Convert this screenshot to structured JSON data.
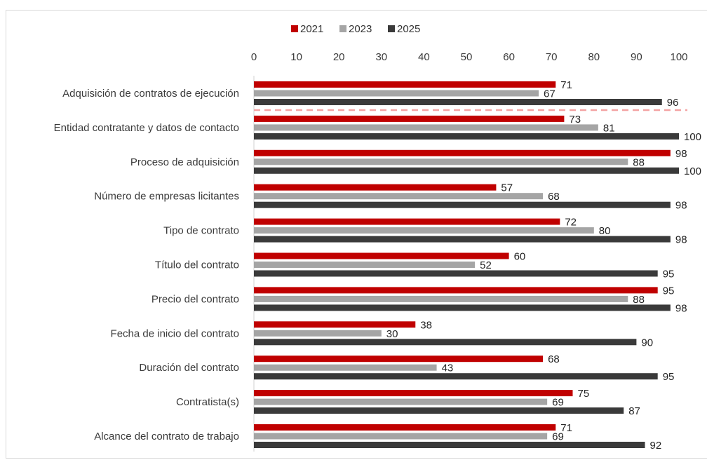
{
  "chart_data": {
    "type": "bar",
    "orientation": "horizontal",
    "title": "",
    "xlabel": "",
    "ylabel": "",
    "xlim": [
      0,
      100
    ],
    "xticks": [
      0,
      10,
      20,
      30,
      40,
      50,
      60,
      70,
      80,
      90,
      100
    ],
    "x_axis_position": "top",
    "grid": false,
    "legend_position": "top",
    "categories": [
      "Adquisición de contratos de ejecución",
      "Entidad contratante y datos de contacto",
      "Proceso de adquisición",
      "Número de empresas licitantes",
      "Tipo de contrato",
      "Título del contrato",
      "Precio del contrato",
      "Fecha de inicio del contrato",
      "Duración del contrato",
      "Contratista(s)",
      "Alcance del contrato de trabajo"
    ],
    "series": [
      {
        "name": "2021",
        "color": "#c00000",
        "values": [
          71,
          73,
          98,
          57,
          72,
          60,
          95,
          38,
          68,
          75,
          71
        ]
      },
      {
        "name": "2023",
        "color": "#a5a5a5",
        "values": [
          67,
          81,
          88,
          68,
          80,
          52,
          88,
          30,
          43,
          69,
          69
        ]
      },
      {
        "name": "2025",
        "color": "#3a3a3a",
        "values": [
          96,
          100,
          100,
          98,
          98,
          95,
          98,
          90,
          95,
          87,
          92
        ]
      }
    ],
    "separator": {
      "after_category_index": 0,
      "color": "#f4a3a3",
      "style": "dashed"
    }
  }
}
